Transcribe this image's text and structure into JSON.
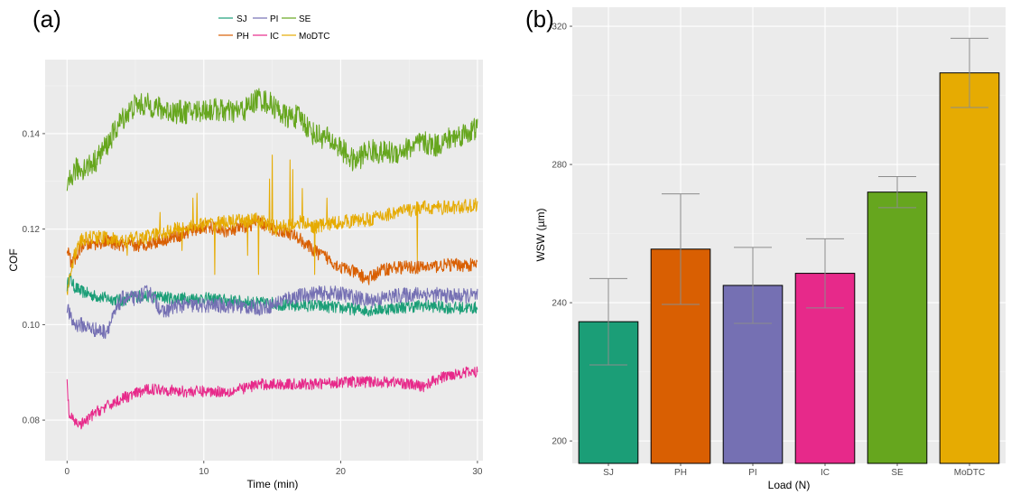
{
  "chart_data": [
    {
      "panel": "(a)",
      "type": "line",
      "xlabel": "Time (min)",
      "ylabel": "COF",
      "xlim": [
        -1.6,
        30.4
      ],
      "ylim": [
        0.0715,
        0.1555
      ],
      "xticks": [
        "0",
        "10",
        "20",
        "30"
      ],
      "yticks": [
        "0.08",
        "0.10",
        "0.12",
        "0.14"
      ],
      "grid": true,
      "legend_position": "top-center",
      "legend_entries": [
        "SJ",
        "PI",
        "SE",
        "PH",
        "IC",
        "MoDTC"
      ],
      "series": [
        {
          "name": "SJ",
          "color": "#1b9e77",
          "noise": 0.0013,
          "spikes": [],
          "x": [
            0,
            0.2,
            0.5,
            1,
            2,
            3,
            4,
            5,
            6,
            8,
            10,
            12,
            14,
            15,
            16,
            18,
            20,
            22,
            24,
            26,
            28,
            30
          ],
          "y": [
            0.108,
            0.11,
            0.108,
            0.107,
            0.106,
            0.1055,
            0.105,
            0.106,
            0.106,
            0.1055,
            0.1055,
            0.105,
            0.1045,
            0.1045,
            0.104,
            0.104,
            0.1035,
            0.103,
            0.1035,
            0.104,
            0.1035,
            0.1035
          ]
        },
        {
          "name": "PI",
          "color": "#7570b3",
          "noise": 0.0016,
          "spikes": [],
          "x": [
            0,
            0.3,
            0.6,
            1,
            2,
            2.8,
            3.3,
            4,
            5,
            6,
            7,
            8,
            10,
            12,
            14,
            15,
            16,
            18,
            20,
            22,
            24,
            26,
            28,
            30
          ],
          "y": [
            0.104,
            0.101,
            0.1,
            0.1,
            0.099,
            0.0985,
            0.101,
            0.1055,
            0.1055,
            0.107,
            0.1025,
            0.104,
            0.104,
            0.104,
            0.1035,
            0.104,
            0.1055,
            0.1065,
            0.1065,
            0.105,
            0.106,
            0.1065,
            0.106,
            0.106
          ]
        },
        {
          "name": "SE",
          "color": "#66a61e",
          "noise": 0.0025,
          "spikes": [],
          "x": [
            0,
            0.2,
            0.6,
            1,
            2,
            3,
            4,
            5,
            6,
            7,
            8,
            9,
            10,
            11,
            12,
            13,
            14,
            15,
            16,
            17,
            18,
            19,
            20,
            21,
            22,
            23,
            24,
            25,
            26,
            27,
            28,
            29,
            30
          ],
          "y": [
            0.127,
            0.13,
            0.1325,
            0.1325,
            0.134,
            0.138,
            0.143,
            0.146,
            0.146,
            0.145,
            0.1445,
            0.1445,
            0.145,
            0.145,
            0.1445,
            0.145,
            0.1475,
            0.146,
            0.1435,
            0.1435,
            0.14,
            0.139,
            0.137,
            0.134,
            0.1365,
            0.136,
            0.136,
            0.137,
            0.138,
            0.1375,
            0.139,
            0.14,
            0.141
          ]
        },
        {
          "name": "PH",
          "color": "#d95f02",
          "noise": 0.0014,
          "spikes": [],
          "x": [
            0,
            0.3,
            0.7,
            1,
            2,
            3,
            4,
            5,
            6,
            8,
            10,
            12,
            13,
            14,
            15,
            16,
            17,
            18,
            19,
            20,
            21,
            22,
            23,
            24,
            26,
            28,
            30
          ],
          "y": [
            0.116,
            0.113,
            0.114,
            0.1165,
            0.117,
            0.1175,
            0.1165,
            0.1165,
            0.117,
            0.1185,
            0.1205,
            0.1195,
            0.1205,
            0.1215,
            0.12,
            0.1195,
            0.118,
            0.1155,
            0.114,
            0.112,
            0.111,
            0.1095,
            0.1115,
            0.112,
            0.112,
            0.1125,
            0.1125
          ]
        },
        {
          "name": "IC",
          "color": "#e7298a",
          "noise": 0.0012,
          "spikes": [],
          "x": [
            0,
            0.15,
            0.4,
            0.7,
            1,
            1.5,
            2,
            3,
            4,
            5,
            6,
            7,
            8,
            10,
            12,
            14,
            15,
            16,
            18,
            20,
            22,
            24,
            26,
            27,
            28,
            29,
            30
          ],
          "y": [
            0.088,
            0.081,
            0.08,
            0.0795,
            0.079,
            0.08,
            0.0815,
            0.083,
            0.0845,
            0.0855,
            0.0865,
            0.0865,
            0.086,
            0.086,
            0.086,
            0.0875,
            0.0875,
            0.0875,
            0.0875,
            0.088,
            0.088,
            0.088,
            0.087,
            0.0885,
            0.0895,
            0.09,
            0.09
          ]
        },
        {
          "name": "MoDTC",
          "color": "#e6ab02",
          "noise": 0.0015,
          "spikes": [
            [
              4.4,
              0.1145
            ],
            [
              6.8,
              0.1235
            ],
            [
              8.4,
              0.1155
            ],
            [
              9.2,
              0.1265
            ],
            [
              9.5,
              0.1275
            ],
            [
              10.8,
              0.1105
            ],
            [
              13.2,
              0.1145
            ],
            [
              14.0,
              0.1105
            ],
            [
              14.8,
              0.1305
            ],
            [
              15.0,
              0.1355
            ],
            [
              15.3,
              0.1185
            ],
            [
              16.3,
              0.1345
            ],
            [
              16.5,
              0.1325
            ],
            [
              17.2,
              0.1285
            ],
            [
              18.1,
              0.1105
            ],
            [
              19.0,
              0.1265
            ],
            [
              25.6,
              0.1135
            ]
          ],
          "x": [
            0,
            0.3,
            0.6,
            1,
            2,
            3,
            4,
            5,
            6,
            8,
            10,
            12,
            14,
            15,
            16,
            17,
            18,
            20,
            22,
            24,
            26,
            28,
            30
          ],
          "y": [
            0.107,
            0.112,
            0.115,
            0.1175,
            0.1185,
            0.118,
            0.1175,
            0.118,
            0.1185,
            0.12,
            0.121,
            0.1215,
            0.122,
            0.1205,
            0.1205,
            0.1215,
            0.1205,
            0.1215,
            0.122,
            0.1235,
            0.1245,
            0.1245,
            0.125
          ]
        }
      ]
    },
    {
      "panel": "(b)",
      "type": "bar",
      "xlabel": "Load (N)",
      "ylabel": "WSW (µm)",
      "categories": [
        "SJ",
        "PH",
        "PI",
        "IC",
        "SE",
        "MoDTC"
      ],
      "values": [
        234.5,
        255.5,
        245,
        248.5,
        272,
        306.5
      ],
      "error": [
        12.5,
        16,
        11,
        10,
        4.5,
        10
      ],
      "colors": [
        "#1b9e77",
        "#d95f02",
        "#7570b3",
        "#e7298a",
        "#66a61e",
        "#e6ab02"
      ],
      "ylim": [
        193.5,
        325.5
      ],
      "yticks": [
        "200",
        "240",
        "280",
        "320"
      ],
      "grid": true
    }
  ]
}
